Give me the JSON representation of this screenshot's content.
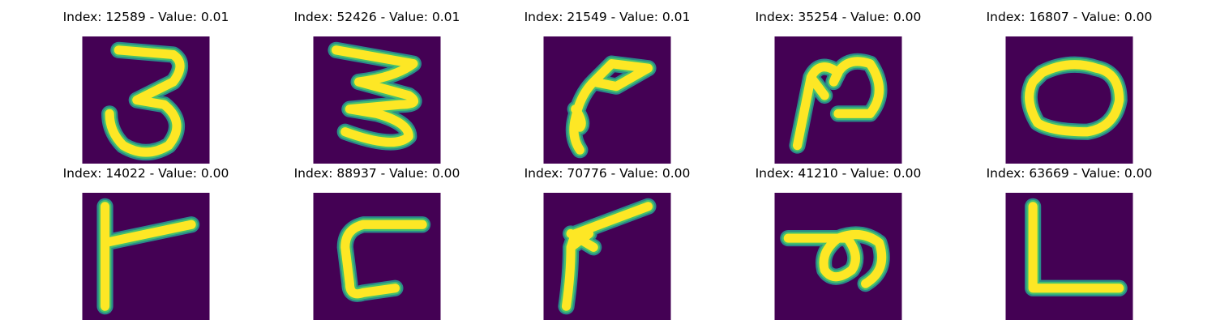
{
  "colors": {
    "background": "#440154",
    "stroke_outer": "#2a8a8a",
    "stroke_mid": "#45c06d",
    "stroke_core": "#fde725"
  },
  "panels": [
    {
      "index": "12589",
      "value": "0.01",
      "title": "Index: 12589 - Value: 0.01",
      "glyph": "three"
    },
    {
      "index": "52426",
      "value": "0.01",
      "title": "Index: 52426 - Value: 0.01",
      "glyph": "three-wide"
    },
    {
      "index": "21549",
      "value": "0.01",
      "title": "Index: 21549 - Value: 0.01",
      "glyph": "hook"
    },
    {
      "index": "35254",
      "value": "0.00",
      "title": "Index: 35254 - Value: 0.00",
      "glyph": "n-loop"
    },
    {
      "index": "16807",
      "value": "0.00",
      "title": "Index: 16807 - Value: 0.00",
      "glyph": "o"
    },
    {
      "index": "14022",
      "value": "0.00",
      "title": "Index: 14022 - Value: 0.00",
      "glyph": "r"
    },
    {
      "index": "88937",
      "value": "0.00",
      "title": "Index: 88937 - Value: 0.00",
      "glyph": "c-box"
    },
    {
      "index": "70776",
      "value": "0.00",
      "title": "Index: 70776 - Value: 0.00",
      "glyph": "v-angle"
    },
    {
      "index": "41210",
      "value": "0.00",
      "title": "Index: 41210 - Value: 0.00",
      "glyph": "p-loop"
    },
    {
      "index": "63669",
      "value": "0.00",
      "title": "Index: 63669 - Value: 0.00",
      "glyph": "l"
    }
  ]
}
